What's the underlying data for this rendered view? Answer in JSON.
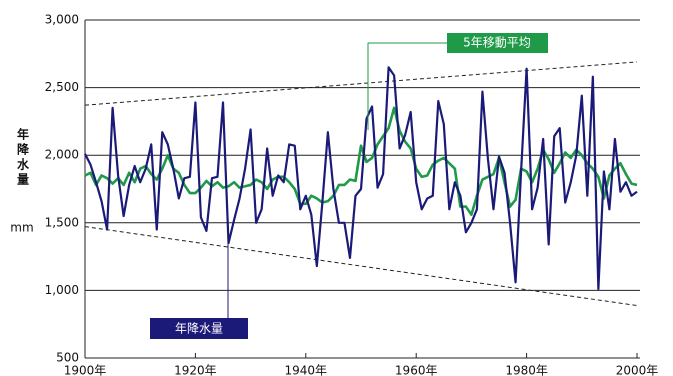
{
  "chart_data": {
    "type": "line",
    "y_label": "年降水量",
    "y_unit": "mm",
    "x": [
      1900,
      1901,
      1902,
      1903,
      1904,
      1905,
      1906,
      1907,
      1908,
      1909,
      1910,
      1911,
      1912,
      1913,
      1914,
      1915,
      1916,
      1917,
      1918,
      1919,
      1920,
      1921,
      1922,
      1923,
      1924,
      1925,
      1926,
      1927,
      1928,
      1929,
      1930,
      1931,
      1932,
      1933,
      1934,
      1935,
      1936,
      1937,
      1938,
      1939,
      1940,
      1941,
      1942,
      1943,
      1944,
      1945,
      1946,
      1947,
      1948,
      1949,
      1950,
      1951,
      1952,
      1953,
      1954,
      1955,
      1956,
      1957,
      1958,
      1959,
      1960,
      1961,
      1962,
      1963,
      1964,
      1965,
      1966,
      1967,
      1968,
      1969,
      1970,
      1971,
      1972,
      1973,
      1974,
      1975,
      1976,
      1977,
      1978,
      1979,
      1980,
      1981,
      1982,
      1983,
      1984,
      1985,
      1986,
      1987,
      1988,
      1989,
      1990,
      1991,
      1992,
      1993,
      1994,
      1995,
      1996,
      1997,
      1998,
      1999,
      2000
    ],
    "series": [
      {
        "name": "年降水量",
        "color": "#1c1a78",
        "values": [
          2010,
          1930,
          1800,
          1660,
          1450,
          2350,
          1850,
          1550,
          1780,
          1920,
          1800,
          1900,
          2080,
          1450,
          2170,
          2080,
          1900,
          1680,
          1830,
          1840,
          2390,
          1540,
          1440,
          1830,
          1840,
          2390,
          1350,
          1520,
          1680,
          1900,
          2190,
          1500,
          1600,
          2050,
          1700,
          1850,
          1800,
          2080,
          2070,
          1600,
          1700,
          1560,
          1180,
          1650,
          2170,
          1750,
          1500,
          1500,
          1240,
          1700,
          1750,
          2270,
          2360,
          1760,
          1860,
          2650,
          2590,
          2050,
          2150,
          2320,
          1800,
          1600,
          1680,
          1700,
          2400,
          2230,
          1600,
          1800,
          1700,
          1430,
          1500,
          1600,
          2470,
          1970,
          1600,
          1990,
          1870,
          1500,
          1060,
          1880,
          2640,
          1600,
          1760,
          2120,
          1340,
          2140,
          2200,
          1650,
          1800,
          2000,
          2440,
          1700,
          2580,
          1010,
          1880,
          1600,
          2120,
          1730,
          1800,
          1700,
          1730
        ]
      },
      {
        "name": "5年移動平均",
        "color": "#1f9a48",
        "values": [
          1850,
          1870,
          1780,
          1850,
          1830,
          1790,
          1830,
          1780,
          1870,
          1800,
          1900,
          1920,
          1860,
          1820,
          1900,
          2000,
          1900,
          1870,
          1780,
          1720,
          1720,
          1760,
          1810,
          1770,
          1800,
          1760,
          1770,
          1800,
          1760,
          1770,
          1780,
          1820,
          1800,
          1750,
          1820,
          1840,
          1840,
          1800,
          1750,
          1640,
          1640,
          1700,
          1680,
          1650,
          1660,
          1700,
          1780,
          1780,
          1820,
          1810,
          2070,
          1950,
          1980,
          2080,
          2140,
          2200,
          2350,
          2180,
          2100,
          2050,
          1900,
          1840,
          1850,
          1930,
          1960,
          1980,
          1940,
          1900,
          1620,
          1620,
          1560,
          1700,
          1820,
          1840,
          1860,
          1980,
          1800,
          1620,
          1670,
          1900,
          1880,
          1800,
          1900,
          2040,
          1970,
          1870,
          1940,
          2020,
          1980,
          2040,
          2000,
          1940,
          1900,
          1840,
          1680,
          1850,
          1900,
          1940,
          1860,
          1790,
          1780
        ]
      }
    ],
    "trend_lines": [
      {
        "x": [
          1900,
          2000
        ],
        "values": [
          2370,
          2690
        ]
      },
      {
        "x": [
          1900,
          2000
        ],
        "values": [
          1472,
          888
        ]
      }
    ],
    "xlim": [
      1900,
      2000
    ],
    "xticks": [
      {
        "value": 1900,
        "label": "1900年"
      },
      {
        "value": 1920,
        "label": "1920年"
      },
      {
        "value": 1940,
        "label": "1940年"
      },
      {
        "value": 1960,
        "label": "1960年"
      },
      {
        "value": 1980,
        "label": "1980年"
      },
      {
        "value": 2000,
        "label": "2000年"
      }
    ],
    "ylim": [
      500,
      3000
    ],
    "yticks": [
      {
        "value": 500,
        "label": "500"
      },
      {
        "value": 1000,
        "label": "1,000"
      },
      {
        "value": 1500,
        "label": "1,500"
      },
      {
        "value": 2000,
        "label": "2,000"
      },
      {
        "value": 2500,
        "label": "2,500"
      },
      {
        "value": 3000,
        "label": "3,000"
      }
    ],
    "grid": true
  }
}
